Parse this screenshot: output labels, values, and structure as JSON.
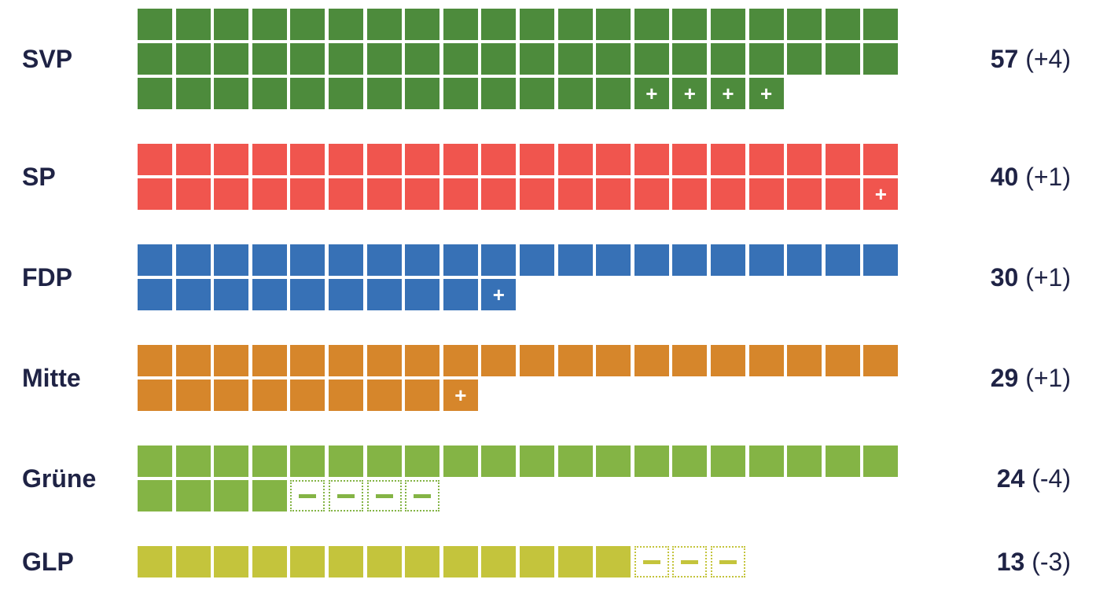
{
  "chart_data": {
    "type": "waffle",
    "seats_per_row": 20,
    "gain_marker": "+",
    "parties": [
      {
        "name": "SVP",
        "seats": 57,
        "change": 4,
        "seats_text": "57",
        "change_text": "(+4)",
        "color": "#4d8b3c"
      },
      {
        "name": "SP",
        "seats": 40,
        "change": 1,
        "seats_text": "40",
        "change_text": "(+1)",
        "color": "#f0554e"
      },
      {
        "name": "FDP",
        "seats": 30,
        "change": 1,
        "seats_text": "30",
        "change_text": "(+1)",
        "color": "#3771b6"
      },
      {
        "name": "Mitte",
        "seats": 29,
        "change": 1,
        "seats_text": "29",
        "change_text": "(+1)",
        "color": "#d6862b"
      },
      {
        "name": "Grüne",
        "seats": 24,
        "change": -4,
        "seats_text": "24",
        "change_text": "(-4)",
        "color": "#84b445"
      },
      {
        "name": "GLP",
        "seats": 13,
        "change": -3,
        "seats_text": "13",
        "change_text": "(-3)",
        "color": "#c4c43c"
      }
    ]
  }
}
